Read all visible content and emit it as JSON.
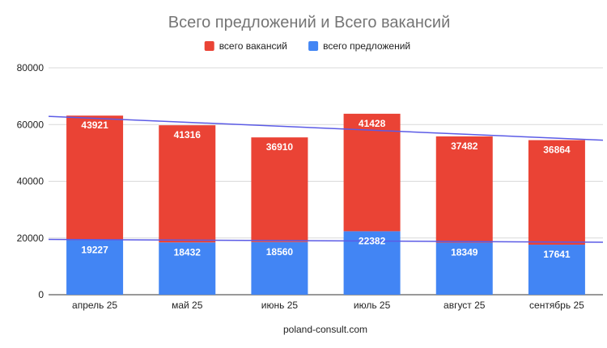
{
  "chart_data": {
    "type": "bar",
    "stacked": true,
    "title": "Всего предложений и Всего вакансий",
    "xlabel": "poland-consult.com",
    "ylabel": "",
    "categories": [
      "апрель 25",
      "май 25",
      "июнь 25",
      "июль 25",
      "август 25",
      "сентябрь 25"
    ],
    "series": [
      {
        "name": "всего предложений",
        "color": "#4285f4",
        "values": [
          19227,
          18432,
          18560,
          22382,
          18349,
          17641
        ]
      },
      {
        "name": "всего вакансий",
        "color": "#ea4335",
        "values": [
          43921,
          41316,
          36910,
          41428,
          37482,
          36864
        ]
      }
    ],
    "legend_order": [
      1,
      0
    ],
    "legend_position": "top",
    "yticks": [
      "0",
      "20000",
      "40000",
      "60000",
      "80000"
    ],
    "ylim": [
      0,
      80000
    ],
    "grid": true,
    "trendline_color": "#5b5be6",
    "trendlines": [
      {
        "of": "total",
        "start": 62900,
        "end": 54500
      },
      {
        "of": "всего предложений",
        "start": 19500,
        "end": 18500
      }
    ]
  }
}
